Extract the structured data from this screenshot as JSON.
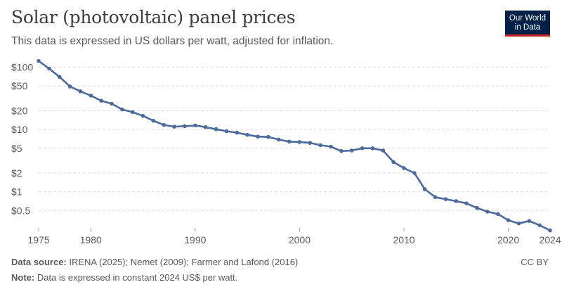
{
  "header": {
    "title": "Solar (photovoltaic) panel prices",
    "subtitle": "This data is expressed in US dollars per watt, adjusted for inflation."
  },
  "logo": {
    "line1": "Our World",
    "line2": "in Data",
    "bg_color": "#002147",
    "accent_color": "#ce261e"
  },
  "footer": {
    "source_label": "Data source:",
    "source_text": "IRENA (2025); Nemet (2009); Farmer and Lafond (2016)",
    "note_label": "Note:",
    "note_text": "Data is expressed in constant 2024 US$ per watt.",
    "license": "CC BY"
  },
  "chart_data": {
    "type": "line",
    "title": "Solar (photovoltaic) panel prices",
    "subtitle": "This data is expressed in US dollars per watt, adjusted for inflation.",
    "yscale": "log",
    "ylim": [
      0.25,
      135
    ],
    "xlim": [
      1975,
      2024
    ],
    "grid": true,
    "line_color": "#4c6a9c",
    "y_ticks": [
      {
        "value": 100,
        "label": "$100"
      },
      {
        "value": 50,
        "label": "$50"
      },
      {
        "value": 20,
        "label": "$20"
      },
      {
        "value": 10,
        "label": "$10"
      },
      {
        "value": 5,
        "label": "$5"
      },
      {
        "value": 2,
        "label": "$2"
      },
      {
        "value": 1,
        "label": "$1"
      },
      {
        "value": 0.5,
        "label": "$0.5"
      }
    ],
    "x_ticks": [
      1975,
      1980,
      1990,
      2000,
      2010,
      2020,
      2024
    ],
    "series": [
      {
        "x": [
          1975,
          1976,
          1977,
          1978,
          1979,
          1980,
          1981,
          1982,
          1983,
          1984,
          1985,
          1986,
          1987,
          1988,
          1989,
          1990,
          1991,
          1992,
          1993,
          1994,
          1995,
          1996,
          1997,
          1998,
          1999,
          2000,
          2001,
          2002,
          2003,
          2004,
          2005,
          2006,
          2007,
          2008,
          2009,
          2010,
          2011,
          2012,
          2013,
          2014,
          2015,
          2016,
          2017,
          2018,
          2019,
          2020,
          2021,
          2022,
          2023,
          2024
        ],
        "values": [
          126,
          95,
          70,
          49,
          41,
          35,
          29,
          26,
          21,
          19,
          16.5,
          13.8,
          11.8,
          11.1,
          11.3,
          11.6,
          10.9,
          10.1,
          9.4,
          8.9,
          8.2,
          7.7,
          7.6,
          6.9,
          6.4,
          6.3,
          6.1,
          5.6,
          5.3,
          4.5,
          4.6,
          5.0,
          5.0,
          4.6,
          3.0,
          2.4,
          2.0,
          1.1,
          0.82,
          0.76,
          0.71,
          0.65,
          0.55,
          0.48,
          0.44,
          0.35,
          0.31,
          0.34,
          0.29,
          0.24
        ]
      }
    ]
  }
}
